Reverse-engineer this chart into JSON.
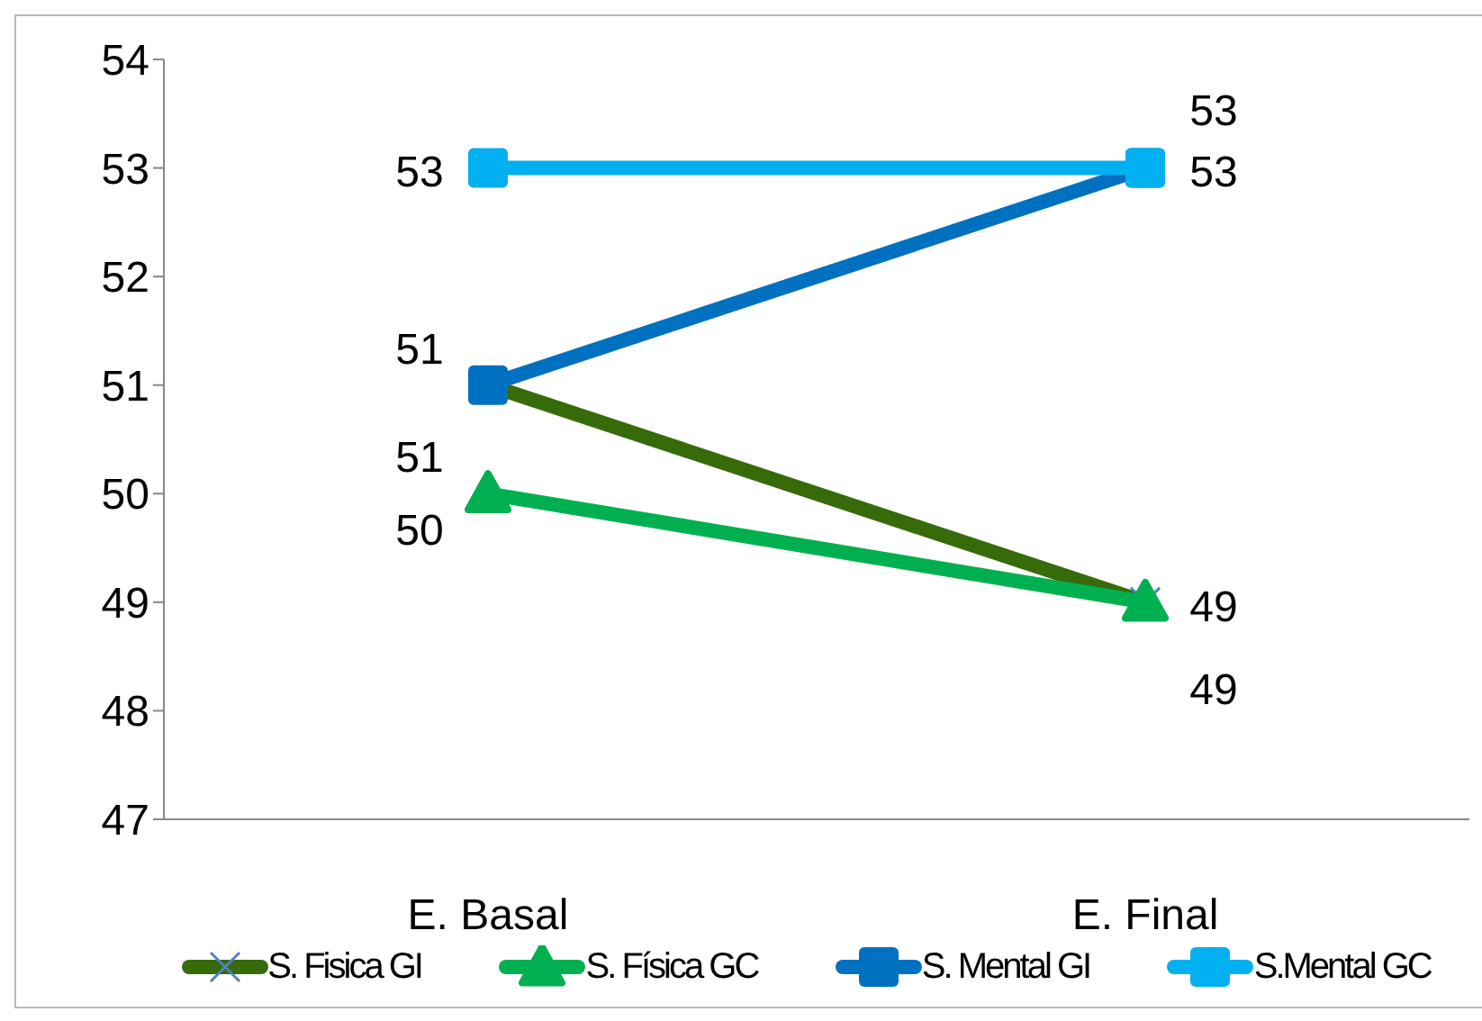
{
  "chart_data": {
    "type": "line",
    "categories": [
      "E. Basal",
      "E. Final"
    ],
    "series": [
      {
        "name": "S. Fisica GI",
        "color": "#376b0a",
        "values": [
          51,
          49
        ],
        "marker": "cross"
      },
      {
        "name": "S. Física GC",
        "color": "#00b050",
        "values": [
          50,
          49
        ],
        "marker": "triangle"
      },
      {
        "name": "S. Mental GI",
        "color": "#0070c0",
        "values": [
          51,
          53
        ],
        "marker": "square"
      },
      {
        "name": "S.Mental GC",
        "color": "#00b0f0",
        "values": [
          53,
          53
        ],
        "marker": "square"
      }
    ],
    "ylim": [
      47,
      54
    ],
    "yticks": [
      47,
      48,
      49,
      50,
      51,
      52,
      53,
      54
    ],
    "grid": false,
    "legend": "bottom",
    "data_labels": true
  }
}
